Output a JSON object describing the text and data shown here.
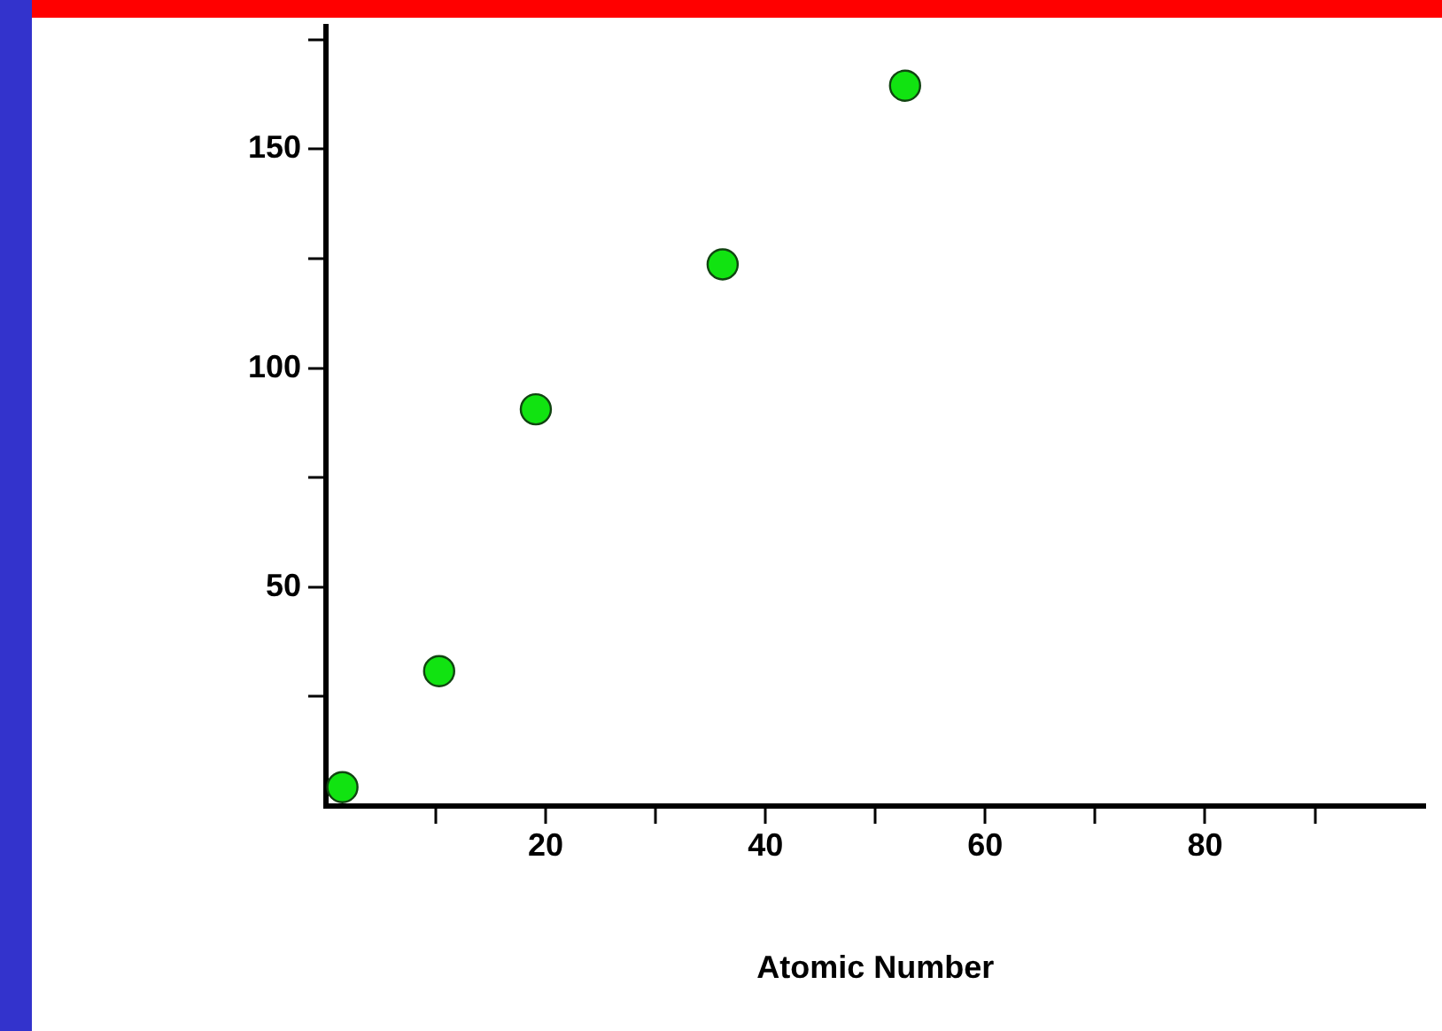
{
  "chart_data": {
    "type": "scatter",
    "xlabel": "Atomic Number",
    "x": [
      1.5,
      10.3,
      19.1,
      36.1,
      52.7
    ],
    "values": [
      4.3,
      30.8,
      90.6,
      123.7,
      164.5
    ],
    "color": "#11e311",
    "marker": "circle",
    "xlim": [
      0,
      100
    ],
    "xticks": [
      {
        "value": 10,
        "label": null
      },
      20,
      {
        "value": 30,
        "label": null
      },
      40,
      {
        "value": 50,
        "label": null
      },
      60,
      {
        "value": 70,
        "label": null
      },
      80,
      {
        "value": 90,
        "label": null
      }
    ],
    "ylim": [
      0,
      178
    ],
    "yticks": [
      {
        "value": 25,
        "label": null
      },
      50,
      {
        "value": 75,
        "label": null
      },
      100,
      {
        "value": 125,
        "label": null
      },
      150,
      {
        "value": 175,
        "label": null
      }
    ],
    "grid": false,
    "legend": false
  }
}
